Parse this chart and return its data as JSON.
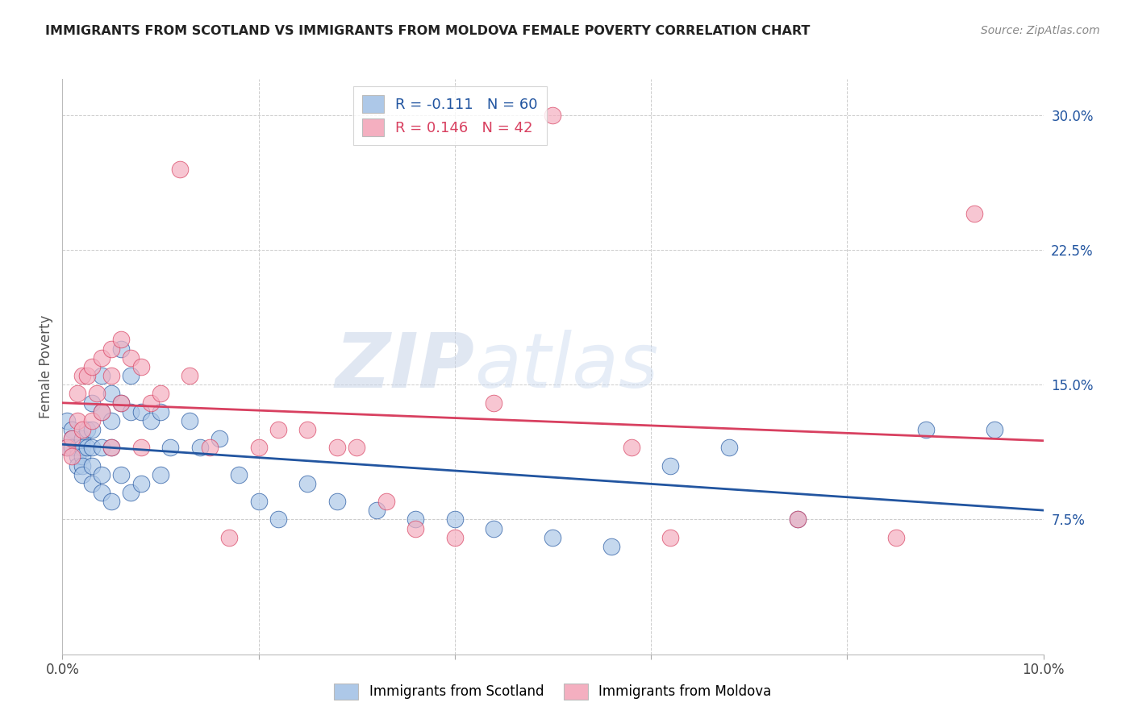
{
  "title": "IMMIGRANTS FROM SCOTLAND VS IMMIGRANTS FROM MOLDOVA FEMALE POVERTY CORRELATION CHART",
  "source": "Source: ZipAtlas.com",
  "ylabel": "Female Poverty",
  "xlim": [
    0.0,
    0.1
  ],
  "ylim": [
    0.0,
    0.32
  ],
  "yticks": [
    0.075,
    0.15,
    0.225,
    0.3
  ],
  "ytick_labels": [
    "7.5%",
    "15.0%",
    "22.5%",
    "30.0%"
  ],
  "xticks": [
    0.0,
    0.02,
    0.04,
    0.06,
    0.08,
    0.1
  ],
  "xtick_labels": [
    "0.0%",
    "",
    "",
    "",
    "",
    "10.0%"
  ],
  "legend_entry1": "R = -0.111   N = 60",
  "legend_entry2": "R = 0.146   N = 42",
  "color_scotland": "#adc8e8",
  "color_moldova": "#f4afc0",
  "line_color_scotland": "#2255a0",
  "line_color_moldova": "#d84060",
  "watermark_zip": "ZIP",
  "watermark_atlas": "atlas",
  "scotland_x": [
    0.0005,
    0.0005,
    0.001,
    0.001,
    0.001,
    0.0015,
    0.0015,
    0.0015,
    0.002,
    0.002,
    0.002,
    0.002,
    0.002,
    0.0025,
    0.0025,
    0.003,
    0.003,
    0.003,
    0.003,
    0.003,
    0.004,
    0.004,
    0.004,
    0.004,
    0.004,
    0.005,
    0.005,
    0.005,
    0.005,
    0.006,
    0.006,
    0.006,
    0.007,
    0.007,
    0.007,
    0.008,
    0.008,
    0.009,
    0.01,
    0.01,
    0.011,
    0.013,
    0.014,
    0.016,
    0.018,
    0.02,
    0.022,
    0.025,
    0.028,
    0.032,
    0.036,
    0.04,
    0.044,
    0.05,
    0.056,
    0.062,
    0.068,
    0.075,
    0.088,
    0.095
  ],
  "scotland_y": [
    0.13,
    0.115,
    0.125,
    0.12,
    0.115,
    0.115,
    0.11,
    0.105,
    0.12,
    0.115,
    0.11,
    0.105,
    0.1,
    0.125,
    0.115,
    0.14,
    0.125,
    0.115,
    0.105,
    0.095,
    0.155,
    0.135,
    0.115,
    0.1,
    0.09,
    0.145,
    0.13,
    0.115,
    0.085,
    0.17,
    0.14,
    0.1,
    0.155,
    0.135,
    0.09,
    0.135,
    0.095,
    0.13,
    0.135,
    0.1,
    0.115,
    0.13,
    0.115,
    0.12,
    0.1,
    0.085,
    0.075,
    0.095,
    0.085,
    0.08,
    0.075,
    0.075,
    0.07,
    0.065,
    0.06,
    0.105,
    0.115,
    0.075,
    0.125,
    0.125
  ],
  "moldova_x": [
    0.0005,
    0.001,
    0.001,
    0.0015,
    0.0015,
    0.002,
    0.002,
    0.0025,
    0.003,
    0.003,
    0.0035,
    0.004,
    0.004,
    0.005,
    0.005,
    0.005,
    0.006,
    0.006,
    0.007,
    0.008,
    0.008,
    0.009,
    0.01,
    0.012,
    0.013,
    0.015,
    0.017,
    0.02,
    0.022,
    0.025,
    0.028,
    0.03,
    0.033,
    0.036,
    0.04,
    0.044,
    0.05,
    0.058,
    0.062,
    0.075,
    0.085,
    0.093
  ],
  "moldova_y": [
    0.115,
    0.12,
    0.11,
    0.145,
    0.13,
    0.155,
    0.125,
    0.155,
    0.16,
    0.13,
    0.145,
    0.165,
    0.135,
    0.17,
    0.155,
    0.115,
    0.175,
    0.14,
    0.165,
    0.16,
    0.115,
    0.14,
    0.145,
    0.27,
    0.155,
    0.115,
    0.065,
    0.115,
    0.125,
    0.125,
    0.115,
    0.115,
    0.085,
    0.07,
    0.065,
    0.14,
    0.3,
    0.115,
    0.065,
    0.075,
    0.065,
    0.245
  ]
}
